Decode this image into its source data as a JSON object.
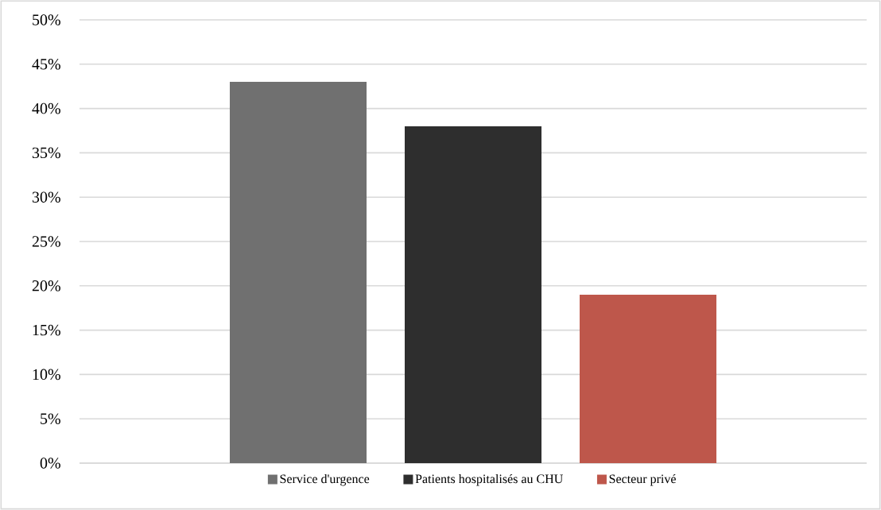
{
  "chart_data": {
    "type": "bar",
    "categories": [
      null
    ],
    "series": [
      {
        "name": "Service d'urgence",
        "color": "#707070",
        "values": [
          43
        ]
      },
      {
        "name": "Patients hospitalisés au CHU",
        "color": "#2e2e2e",
        "values": [
          38
        ]
      },
      {
        "name": "Secteur privé",
        "color": "#be574b",
        "values": [
          19
        ]
      }
    ],
    "ylim": [
      0,
      50
    ],
    "yticks": [
      {
        "value": 0,
        "label": "0%"
      },
      {
        "value": 5,
        "label": "5%"
      },
      {
        "value": 10,
        "label": "10%"
      },
      {
        "value": 15,
        "label": "15%"
      },
      {
        "value": 20,
        "label": "20%"
      },
      {
        "value": 25,
        "label": "25%"
      },
      {
        "value": 30,
        "label": "30%"
      },
      {
        "value": 35,
        "label": "35%"
      },
      {
        "value": 40,
        "label": "40%"
      },
      {
        "value": 45,
        "label": "45%"
      },
      {
        "value": 50,
        "label": "50%"
      }
    ],
    "grid": "y",
    "legend": "bottom"
  }
}
